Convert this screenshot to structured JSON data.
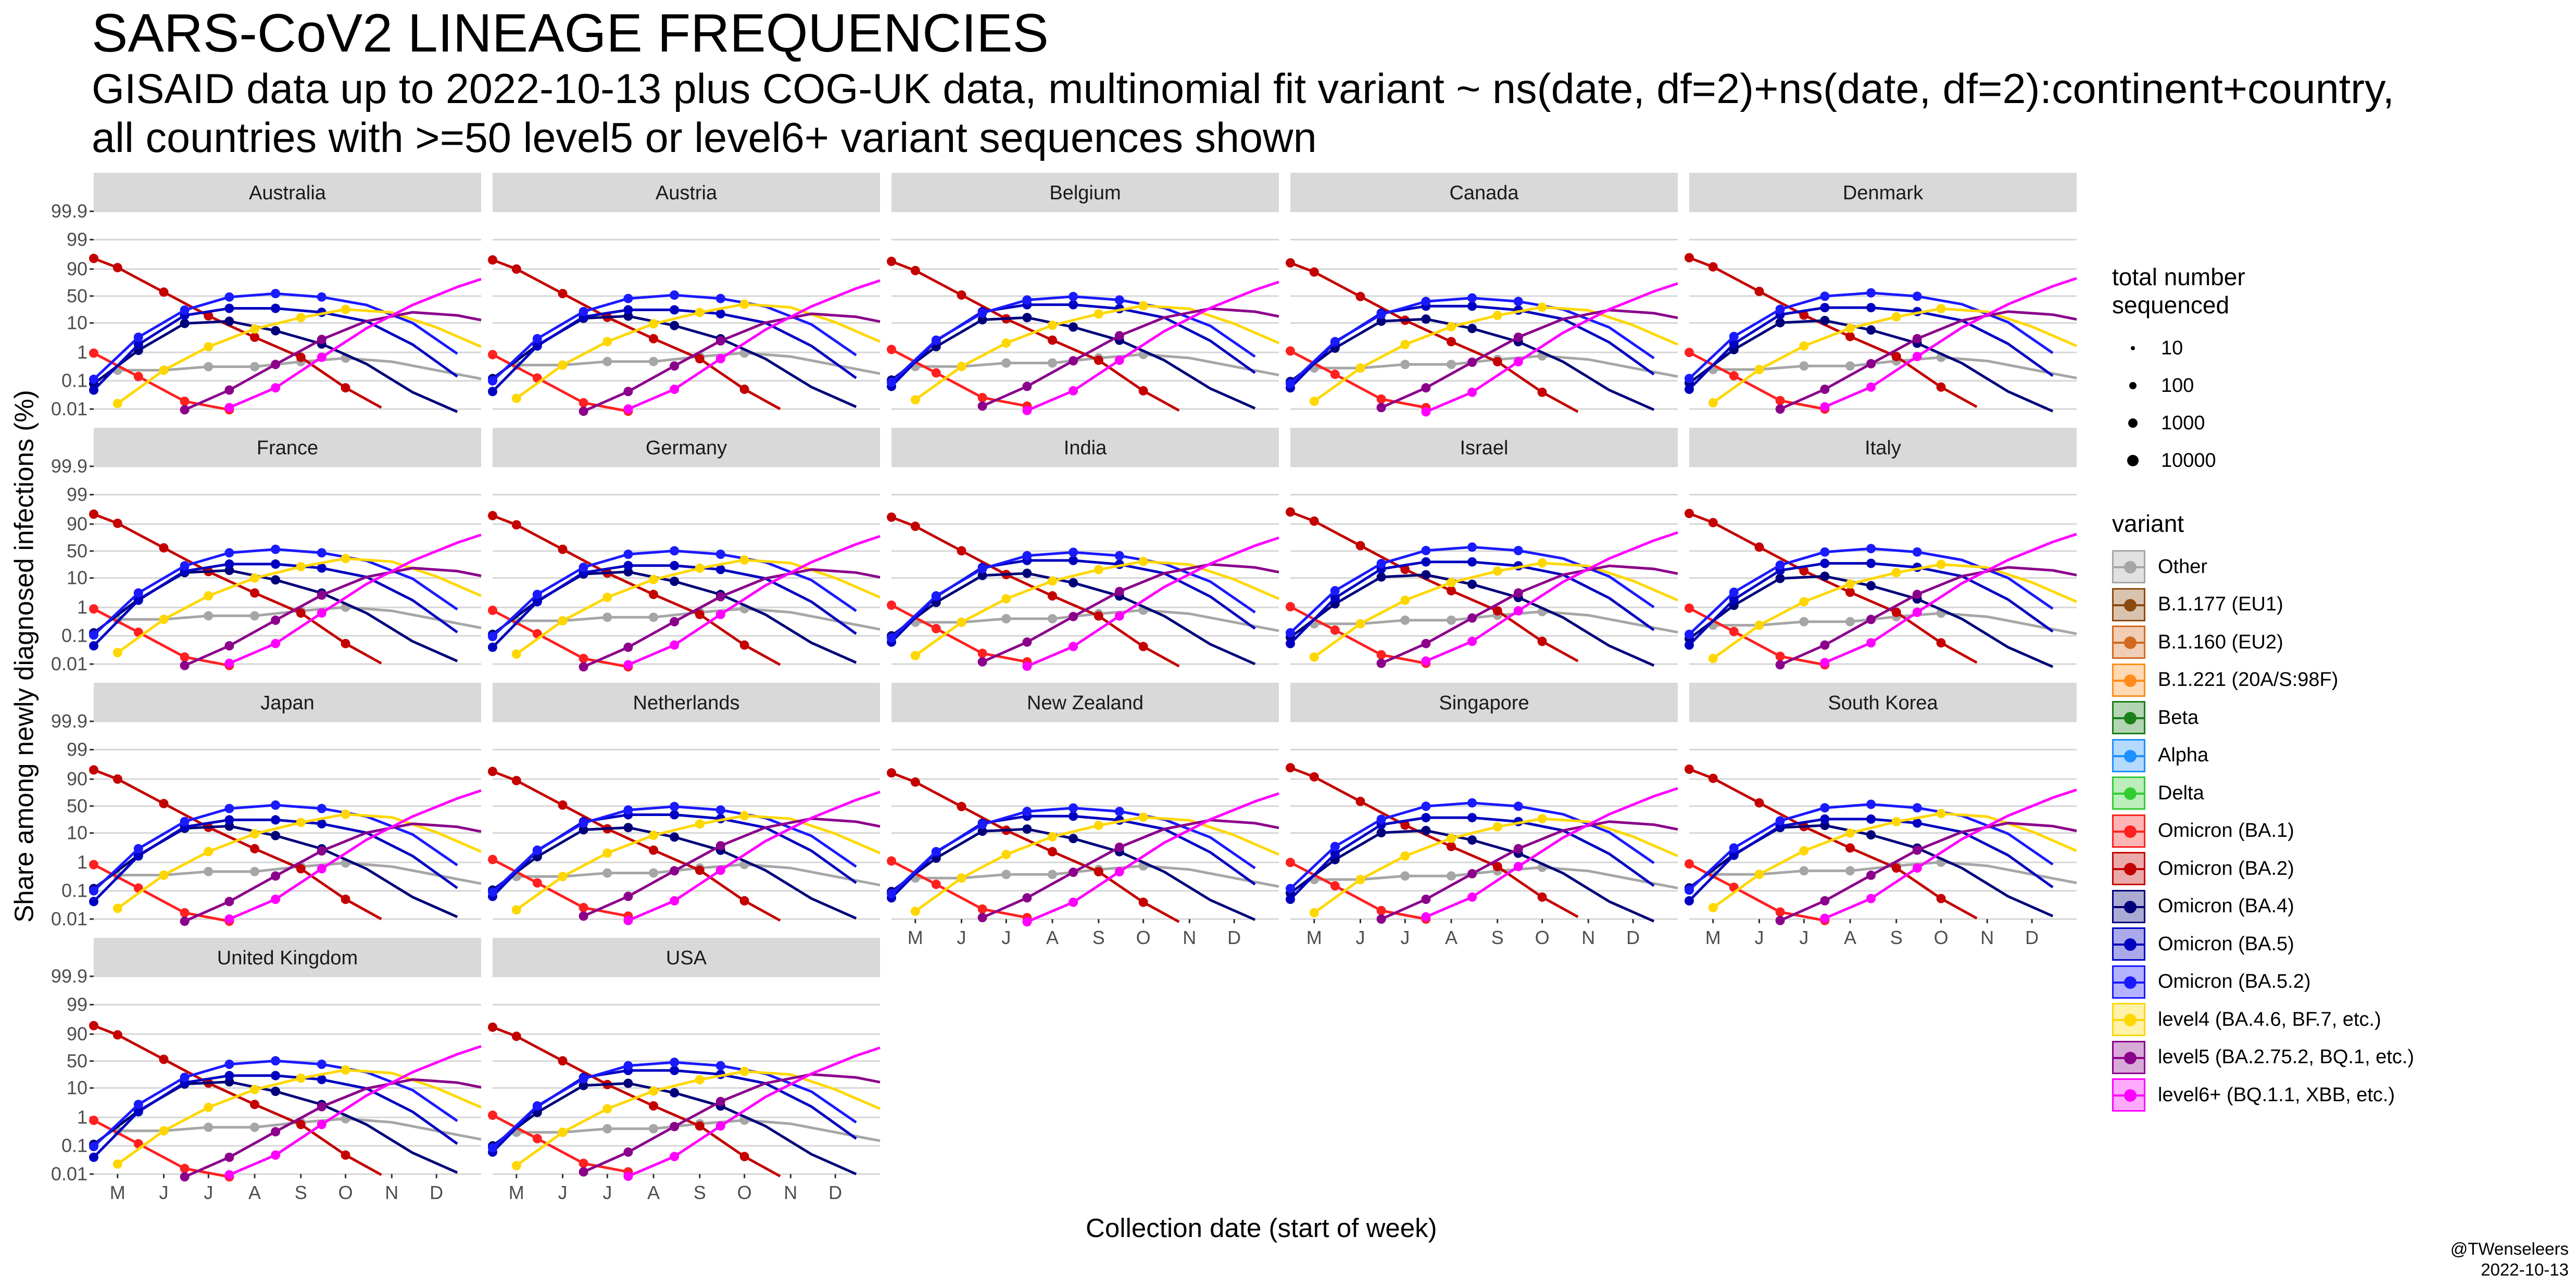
{
  "title": "SARS-CoV2 LINEAGE FREQUENCIES",
  "subtitle": "GISAID data up to 2022-10-13 plus COG-UK data, multinomial fit variant ~ ns(date, df=2)+ns(date, df=2):continent+country,\nall countries with >=50 level5 or level6+ variant sequences shown",
  "y_axis_label": "Share among newly diagnosed infections (%)",
  "x_axis_label": "Collection date (start of week)",
  "credit": {
    "author": "@TWenseleers",
    "date": "2022-10-13"
  },
  "chart_data": {
    "type": "line",
    "y_scale": "logit",
    "y_ticks": [
      "99.9",
      "99",
      "90",
      "50",
      "10",
      "1",
      "0.1",
      "0.01"
    ],
    "x_tick_labels": [
      "M",
      "J",
      "J",
      "A",
      "S",
      "O",
      "N",
      "D"
    ],
    "x_range": [
      "2022-04-15",
      "2022-12-31"
    ],
    "facets": [
      "Australia",
      "Austria",
      "Belgium",
      "Canada",
      "Denmark",
      "France",
      "Germany",
      "India",
      "Israel",
      "Italy",
      "Japan",
      "Netherlands",
      "New Zealand",
      "Singapore",
      "South Korea",
      "United Kingdom",
      "USA"
    ],
    "series": [
      {
        "name": "Other",
        "color": "#a6a6a6",
        "x": [
          "2022-05-01",
          "2022-06-01",
          "2022-07-01",
          "2022-08-01",
          "2022-09-01",
          "2022-10-01",
          "2022-11-01",
          "2022-12-01",
          "2022-12-31"
        ],
        "values": [
          0.3,
          0.3,
          0.4,
          0.4,
          0.6,
          0.8,
          0.6,
          0.3,
          0.15
        ]
      },
      {
        "name": "B.1.177 (EU1)",
        "color": "#8c4a0f",
        "x": [],
        "values": []
      },
      {
        "name": "B.1.160 (EU2)",
        "color": "#d2691e",
        "x": [],
        "values": []
      },
      {
        "name": "B.1.221 (20A/S:98F)",
        "color": "#ff8c1a",
        "x": [],
        "values": []
      },
      {
        "name": "Beta",
        "color": "#1a801a",
        "x": [],
        "values": []
      },
      {
        "name": "Alpha",
        "color": "#1e90ff",
        "x": [],
        "values": []
      },
      {
        "name": "Delta",
        "color": "#33cc33",
        "x": [],
        "values": []
      },
      {
        "name": "Omicron (BA.1)",
        "color": "#ff2020",
        "x": [
          "2022-04-15",
          "2022-05-15",
          "2022-06-15",
          "2022-07-15"
        ],
        "values": [
          1,
          0.15,
          0.02,
          0.01
        ]
      },
      {
        "name": "Omicron (BA.2)",
        "color": "#c40000",
        "x": [
          "2022-04-15",
          "2022-05-01",
          "2022-06-01",
          "2022-07-01",
          "2022-08-01",
          "2022-09-01",
          "2022-10-01",
          "2022-10-25"
        ],
        "values": [
          95,
          90,
          55,
          15,
          3,
          0.6,
          0.05,
          0.01
        ]
      },
      {
        "name": "Omicron (BA.4)",
        "color": "#00007a",
        "x": [
          "2022-04-15",
          "2022-05-15",
          "2022-06-15",
          "2022-07-15",
          "2022-08-15",
          "2022-09-15",
          "2022-10-15",
          "2022-11-15",
          "2022-12-15"
        ],
        "values": [
          0.1,
          1.5,
          12,
          14,
          7,
          2.5,
          0.5,
          0.05,
          0.01
        ]
      },
      {
        "name": "Omicron (BA.5)",
        "color": "#0000c0",
        "x": [
          "2022-04-15",
          "2022-05-15",
          "2022-06-15",
          "2022-07-15",
          "2022-08-15",
          "2022-09-15",
          "2022-10-15",
          "2022-11-15",
          "2022-12-15"
        ],
        "values": [
          0.05,
          2,
          18,
          28,
          28,
          22,
          12,
          2,
          0.15
        ]
      },
      {
        "name": "Omicron (BA.5.2)",
        "color": "#1a1aff",
        "x": [
          "2022-04-15",
          "2022-05-15",
          "2022-06-15",
          "2022-07-15",
          "2022-08-15",
          "2022-09-15",
          "2022-10-15",
          "2022-11-15",
          "2022-12-15"
        ],
        "values": [
          0.1,
          3,
          22,
          45,
          52,
          45,
          30,
          9,
          0.8
        ]
      },
      {
        "name": "level4 (BA.4.6, BF.7, etc.)",
        "color": "#ffd700",
        "x": [
          "2022-05-01",
          "2022-06-01",
          "2022-07-01",
          "2022-08-01",
          "2022-09-01",
          "2022-10-01",
          "2022-11-01",
          "2022-12-01",
          "2022-12-31"
        ],
        "values": [
          0.02,
          0.3,
          2,
          8,
          18,
          30,
          25,
          9,
          2
        ]
      },
      {
        "name": "level5 (BA.2.75.2, BQ.1, etc.)",
        "color": "#8b008b",
        "x": [
          "2022-06-15",
          "2022-07-15",
          "2022-08-15",
          "2022-09-15",
          "2022-10-15",
          "2022-11-15",
          "2022-12-15",
          "2022-12-31"
        ],
        "values": [
          0.01,
          0.05,
          0.4,
          3,
          12,
          22,
          18,
          13
        ]
      },
      {
        "name": "level6+ (BQ.1.1, XBB, etc.)",
        "color": "#ff00ff",
        "x": [
          "2022-07-15",
          "2022-08-15",
          "2022-09-15",
          "2022-10-15",
          "2022-11-15",
          "2022-12-15",
          "2022-12-31"
        ],
        "values": [
          0.01,
          0.05,
          0.6,
          6,
          30,
          65,
          78
        ]
      }
    ],
    "size_legend": {
      "title": "total number\nsequenced",
      "values": [
        "10",
        "100",
        "1000",
        "10000"
      ]
    },
    "variant_legend_title": "variant"
  }
}
